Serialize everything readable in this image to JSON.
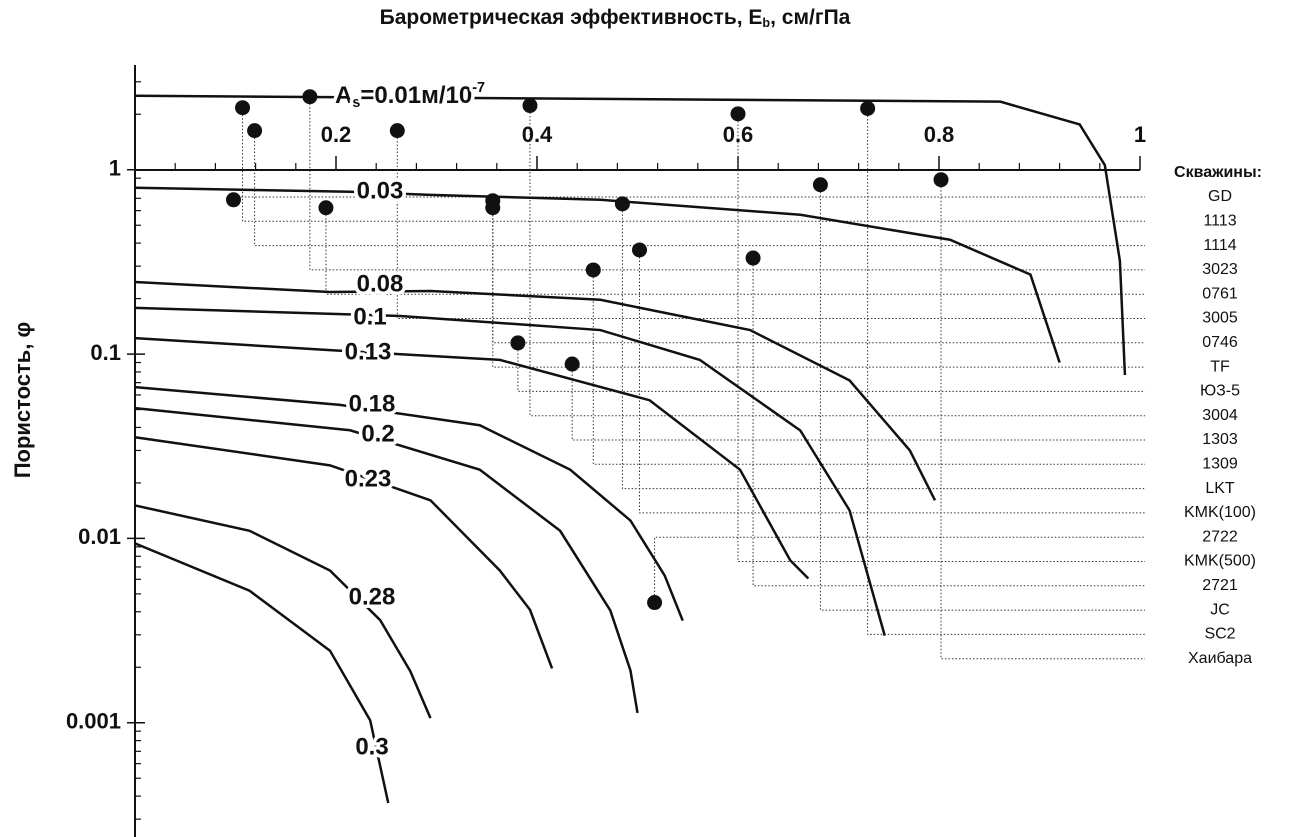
{
  "chart_data": {
    "type": "line",
    "title": [
      "Барометрическая эффективность, E",
      "b",
      ", см/гПа"
    ],
    "y_label": "Пористость, φ",
    "log_y": true,
    "xlim": [
      0,
      1
    ],
    "ylim": [
      0.00024,
      3.7
    ],
    "xticks": [
      0.2,
      0.4,
      0.6,
      0.8,
      1
    ],
    "xminorticks": [
      0.04,
      0.08,
      0.12,
      0.16,
      0.24,
      0.28,
      0.32,
      0.36,
      0.44,
      0.48,
      0.52,
      0.56,
      0.64,
      0.68,
      0.72,
      0.76,
      0.84,
      0.88,
      0.92,
      0.96
    ],
    "yticks": [
      1,
      0.1,
      0.01,
      0.001
    ],
    "yminorticks": [
      0.0003,
      0.0004,
      0.0005,
      0.0006,
      0.0007,
      0.0008,
      0.0009,
      0.002,
      0.003,
      0.004,
      0.005,
      0.006,
      0.007,
      0.008,
      0.009,
      0.02,
      0.03,
      0.04,
      0.05,
      0.06,
      0.07,
      0.08,
      0.09,
      0.2,
      0.3,
      0.4,
      0.5,
      0.6,
      0.7,
      0.8,
      0.9,
      2,
      3
    ],
    "series": [
      {
        "label": [
          "A",
          "s",
          "=0.01м/10",
          "-7"
        ],
        "color": "#111",
        "x": [
          0,
          0.861,
          0.94,
          0.965,
          0.98,
          0.985
        ],
        "values": [
          2.52,
          2.34,
          1.76,
          1.06,
          0.32,
          0.077
        ]
      },
      {
        "label": "0.03",
        "color": "#111",
        "x": [
          0,
          0.214,
          0.294,
          0.463,
          0.662,
          0.811,
          0.891,
          0.92
        ],
        "values": [
          0.798,
          0.76,
          0.73,
          0.687,
          0.57,
          0.417,
          0.27,
          0.09
        ]
      },
      {
        "label": "0.08",
        "color": "#111",
        "x": [
          0,
          0.194,
          0.294,
          0.463,
          0.612,
          0.711,
          0.771,
          0.796
        ],
        "values": [
          0.246,
          0.217,
          0.22,
          0.197,
          0.135,
          0.072,
          0.03,
          0.0161
        ]
      },
      {
        "label": "0.1",
        "color": "#111",
        "x": [
          0,
          0.264,
          0.463,
          0.562,
          0.662,
          0.711,
          0.746
        ],
        "values": [
          0.178,
          0.161,
          0.135,
          0.093,
          0.0385,
          0.0142,
          0.00297
        ]
      },
      {
        "label": "0.13",
        "color": "#111",
        "x": [
          0,
          0.194,
          0.363,
          0.512,
          0.602,
          0.652,
          0.67
        ],
        "values": [
          0.122,
          0.105,
          0.093,
          0.0562,
          0.0236,
          0.0076,
          0.00606
        ]
      },
      {
        "label": "0.18",
        "color": "#111",
        "x": [
          0,
          0.204,
          0.343,
          0.433,
          0.493,
          0.527,
          0.545
        ],
        "values": [
          0.0662,
          0.053,
          0.0411,
          0.0236,
          0.0125,
          0.0063,
          0.00358
        ]
      },
      {
        "label": "0.2",
        "color": "#111",
        "x": [
          0,
          0.214,
          0.343,
          0.423,
          0.473,
          0.493,
          0.5
        ],
        "values": [
          0.0509,
          0.0386,
          0.0236,
          0.011,
          0.00406,
          0.00192,
          0.00113
        ]
      },
      {
        "label": "0.23",
        "color": "#111",
        "x": [
          0,
          0.194,
          0.294,
          0.363,
          0.393,
          0.415
        ],
        "values": [
          0.0354,
          0.0249,
          0.0161,
          0.0067,
          0.0041,
          0.00197
        ]
      },
      {
        "label": "0.28",
        "color": "#111",
        "x": [
          0,
          0.114,
          0.194,
          0.244,
          0.274,
          0.294
        ],
        "values": [
          0.0151,
          0.011,
          0.0067,
          0.0036,
          0.0019,
          0.00106
        ]
      },
      {
        "label": "0.3",
        "color": "#111",
        "x": [
          0,
          0.114,
          0.194,
          0.234,
          0.252
        ],
        "values": [
          0.0094,
          0.0052,
          0.00246,
          0.00103,
          0.000367
        ]
      }
    ],
    "wells": {
      "title": "Скважины:",
      "color": "#111",
      "names": [
        "GD",
        "1113",
        "1114",
        "3023",
        "0761",
        "3005",
        "0746",
        "TF",
        "ЮЗ-5",
        "3004",
        "1303",
        "1309",
        "LKT",
        "KMK(100)",
        "2722",
        "KMK(500)",
        "2721",
        "JC",
        "SC2",
        "Хаибара"
      ],
      "x": [
        0.098,
        0.107,
        0.119,
        0.174,
        0.19,
        0.261,
        0.356,
        0.356,
        0.381,
        0.393,
        0.435,
        0.456,
        0.485,
        0.502,
        0.517,
        0.6,
        0.615,
        0.682,
        0.729,
        0.802
      ],
      "values": [
        0.687,
        2.17,
        1.63,
        2.49,
        0.622,
        1.63,
        0.679,
        0.622,
        0.115,
        2.23,
        0.0883,
        0.286,
        0.653,
        0.367,
        0.00449,
        2.01,
        0.332,
        0.829,
        2.15,
        0.883
      ]
    }
  }
}
